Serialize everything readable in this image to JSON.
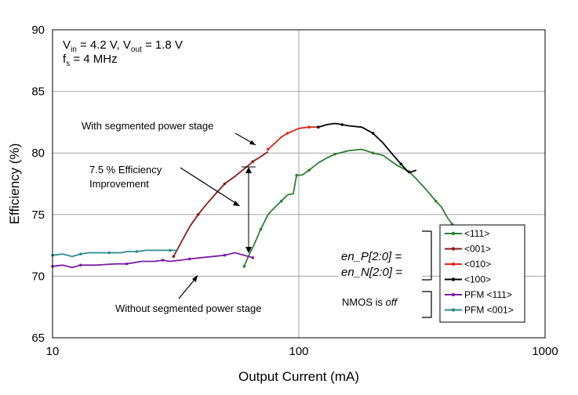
{
  "chart_data": {
    "type": "line",
    "xscale": "log",
    "xlim": [
      10,
      1000
    ],
    "ylim": [
      65,
      90
    ],
    "xticks": [
      10,
      100,
      1000
    ],
    "yticks": [
      65,
      70,
      75,
      80,
      85,
      90
    ],
    "xlabel": "Output Current (mA)",
    "ylabel": "Efficiency (%)",
    "grid": true,
    "conditions": {
      "line1": "4.2 V, V",
      "line2": "4 MHz",
      "vin_label": "V",
      "vin_sub": "in",
      "vin_val": " = 4.2 V, ",
      "vout_label": "V",
      "vout_sub": "out",
      "vout_val": " = 1.8 V",
      "fs_label": "f",
      "fs_sub": "s",
      "fs_val": " = 4 MHz"
    },
    "annotations": {
      "segmented": "With segmented power stage",
      "improvement_line1": "7.5 % Efficiency",
      "improvement_line2": "Improvement",
      "no_segmented": "Without segmented power stage",
      "en_p": "en_P[2:0] =",
      "en_n": "en_N[2:0] =",
      "nmos_prefix": "NMOS is ",
      "nmos_off": "off"
    },
    "series": [
      {
        "name": "<111>",
        "color": "#2e7d32",
        "x": [
          60,
          63,
          66,
          70,
          75,
          80,
          85,
          90,
          95,
          98,
          100,
          103,
          110,
          120,
          130,
          140,
          160,
          180,
          200,
          220,
          250,
          280,
          300,
          330,
          360,
          380,
          400,
          420,
          440
        ],
        "y": [
          70.8,
          71.8,
          72.6,
          73.8,
          75.0,
          75.6,
          76.1,
          76.6,
          76.7,
          78.2,
          78.2,
          78.2,
          78.6,
          79.2,
          79.6,
          79.9,
          80.2,
          80.3,
          80.0,
          79.8,
          79.0,
          78.5,
          77.9,
          77.0,
          76.1,
          75.6,
          74.8,
          74.2,
          73.6
        ]
      },
      {
        "name": "<001>",
        "color": "#8b1a1a",
        "x": [
          31,
          33,
          36,
          39,
          42,
          46,
          50,
          55,
          60,
          65,
          70,
          75
        ],
        "y": [
          71.6,
          72.6,
          74.0,
          75.0,
          75.8,
          76.7,
          77.5,
          78.1,
          78.7,
          79.3,
          79.7,
          80.1
        ]
      },
      {
        "name": "<010>",
        "color": "#e0261a",
        "x": [
          75,
          80,
          85,
          90,
          95,
          100,
          110,
          120
        ],
        "y": [
          80.3,
          80.8,
          81.3,
          81.6,
          81.8,
          82.0,
          82.1,
          82.1
        ]
      },
      {
        "name": "<100>",
        "color": "#000000",
        "x": [
          120,
          130,
          140,
          150,
          160,
          180,
          200,
          220,
          240,
          260,
          280,
          300
        ],
        "y": [
          82.1,
          82.3,
          82.4,
          82.3,
          82.2,
          82.1,
          81.6,
          80.8,
          79.9,
          79.1,
          78.4,
          78.6
        ]
      },
      {
        "name": "PFM <111>",
        "color": "#7b1fa2",
        "x": [
          10,
          11,
          12,
          13,
          15,
          18,
          20,
          23,
          26,
          28,
          30,
          33,
          36,
          40,
          45,
          50,
          55,
          60,
          65
        ],
        "y": [
          70.8,
          70.9,
          70.7,
          70.9,
          70.9,
          71.0,
          71.0,
          71.2,
          71.2,
          71.3,
          71.2,
          71.3,
          71.4,
          71.5,
          71.6,
          71.7,
          71.9,
          71.7,
          71.5
        ]
      },
      {
        "name": "PFM <001>",
        "color": "#2e8b8b",
        "x": [
          10,
          11,
          12,
          13,
          14,
          15,
          17,
          19,
          20,
          22,
          24,
          27,
          30,
          32
        ],
        "y": [
          71.7,
          71.8,
          71.6,
          71.8,
          71.9,
          71.9,
          71.9,
          71.9,
          72.0,
          72.0,
          72.1,
          72.1,
          72.1,
          72.1
        ]
      }
    ]
  }
}
